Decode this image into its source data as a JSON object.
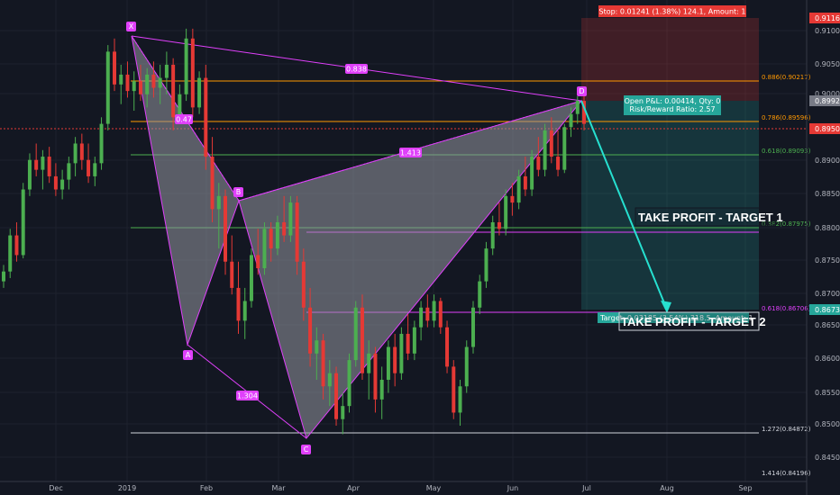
{
  "chart_data": {
    "type": "candlestick",
    "ylim": [
      0.8405,
      0.9125
    ],
    "x_ticks": [
      "Dec",
      "2019",
      "Feb",
      "Mar",
      "Apr",
      "May",
      "Jun",
      "Jul",
      "Aug",
      "Sep"
    ],
    "y_ticks": [
      "0.91000",
      "0.90500",
      "0.90000",
      "0.89000",
      "0.88500",
      "0.88000",
      "0.87500",
      "0.87000",
      "0.86500",
      "0.86000",
      "0.85500",
      "0.85000",
      "0.84500"
    ],
    "price_badges": [
      {
        "value": "0.91161",
        "y": 0.91161,
        "color": "#e53935"
      },
      {
        "value": "0.89920",
        "y": 0.8992,
        "color": "#787b86"
      },
      {
        "value": "0.89506",
        "y": 0.89506,
        "color": "#e53935"
      },
      {
        "value": "0.86735",
        "y": 0.86735,
        "color": "#26a69a"
      }
    ],
    "pattern_points": [
      {
        "label": "X",
        "x": "2018-12-31",
        "y": 0.9095
      },
      {
        "label": "A",
        "x": "2019-01-28",
        "y": 0.8622
      },
      {
        "label": "B",
        "x": "2019-02-15",
        "y": 0.884
      },
      {
        "label": "C",
        "x": "2019-03-12",
        "y": 0.8477
      },
      {
        "label": "D",
        "x": "2019-06-28",
        "y": 0.8992
      }
    ],
    "ratios": [
      "0.838",
      "0.47",
      "1.413",
      "1.304"
    ],
    "fib_levels": [
      {
        "label": "0.886(0.90217)",
        "y": 0.90217,
        "color": "#ff9800"
      },
      {
        "label": "0.786(0.89596)",
        "y": 0.89596,
        "color": "#ff9800"
      },
      {
        "label": "0.618(0.89093)",
        "y": 0.89093,
        "color": "#4caf50"
      },
      {
        "label": "0.382(0.87975)",
        "y": 0.87975,
        "color": "#4caf50"
      },
      {
        "label": "0.618(0.86706)",
        "y": 0.86706,
        "color": "#e040fb"
      },
      {
        "label": "1.272(0.84872)",
        "y": 0.84872,
        "color": "#ffffff"
      },
      {
        "label": "1.414(0.84196)",
        "y": 0.84196,
        "color": "#ffffff"
      }
    ],
    "position": {
      "entry": 0.8992,
      "stop": 0.91161,
      "target": 0.86735,
      "stop_label": "Stop: 0.01241 (1.38%) 124.1, Amount: 1",
      "pnl_line1": "Open P&L: 0.00414, Qty: 0",
      "pnl_line2": "Risk/Reward Ratio: 2.57",
      "target_tag": "Target: 0.03185 (3.54%) 318.5, Amount: 1"
    },
    "annotations": [
      "TAKE PROFIT - TARGET 1",
      "TAKE PROFIT - TARGET 2"
    ],
    "colors": {
      "up": "#26a69a",
      "bullish_candle": "#4caf50",
      "bearish_candle": "#e53935",
      "pattern_fill": "#9598a1",
      "pattern_line": "#e040fb",
      "arrow": "#26e0d0",
      "background": "#131722"
    },
    "candles": [
      {
        "o": 0.871,
        "h": 0.8735,
        "l": 0.87,
        "c": 0.8725
      },
      {
        "o": 0.8725,
        "h": 0.879,
        "l": 0.8715,
        "c": 0.878
      },
      {
        "o": 0.878,
        "h": 0.88,
        "l": 0.874,
        "c": 0.875
      },
      {
        "o": 0.875,
        "h": 0.886,
        "l": 0.8745,
        "c": 0.885
      },
      {
        "o": 0.885,
        "h": 0.8905,
        "l": 0.884,
        "c": 0.8895
      },
      {
        "o": 0.8895,
        "h": 0.892,
        "l": 0.887,
        "c": 0.888
      },
      {
        "o": 0.888,
        "h": 0.891,
        "l": 0.885,
        "c": 0.89
      },
      {
        "o": 0.89,
        "h": 0.8915,
        "l": 0.886,
        "c": 0.887
      },
      {
        "o": 0.887,
        "h": 0.889,
        "l": 0.884,
        "c": 0.885
      },
      {
        "o": 0.885,
        "h": 0.888,
        "l": 0.8835,
        "c": 0.8865
      },
      {
        "o": 0.8865,
        "h": 0.89,
        "l": 0.885,
        "c": 0.889
      },
      {
        "o": 0.889,
        "h": 0.893,
        "l": 0.887,
        "c": 0.892
      },
      {
        "o": 0.892,
        "h": 0.8935,
        "l": 0.888,
        "c": 0.8895
      },
      {
        "o": 0.8895,
        "h": 0.892,
        "l": 0.886,
        "c": 0.887
      },
      {
        "o": 0.887,
        "h": 0.89,
        "l": 0.8855,
        "c": 0.889
      },
      {
        "o": 0.889,
        "h": 0.896,
        "l": 0.888,
        "c": 0.895
      },
      {
        "o": 0.895,
        "h": 0.907,
        "l": 0.894,
        "c": 0.906
      },
      {
        "o": 0.906,
        "h": 0.908,
        "l": 0.9,
        "c": 0.901
      },
      {
        "o": 0.901,
        "h": 0.904,
        "l": 0.898,
        "c": 0.9025
      },
      {
        "o": 0.9025,
        "h": 0.9045,
        "l": 0.899,
        "c": 0.9
      },
      {
        "o": 0.9,
        "h": 0.903,
        "l": 0.897,
        "c": 0.9015
      },
      {
        "o": 0.9015,
        "h": 0.904,
        "l": 0.8985,
        "c": 0.8995
      },
      {
        "o": 0.8995,
        "h": 0.9035,
        "l": 0.8975,
        "c": 0.9025
      },
      {
        "o": 0.9025,
        "h": 0.9045,
        "l": 0.899,
        "c": 0.9005
      },
      {
        "o": 0.9005,
        "h": 0.904,
        "l": 0.898,
        "c": 0.902
      },
      {
        "o": 0.902,
        "h": 0.906,
        "l": 0.8995,
        "c": 0.904
      },
      {
        "o": 0.904,
        "h": 0.905,
        "l": 0.894,
        "c": 0.896
      },
      {
        "o": 0.896,
        "h": 0.901,
        "l": 0.895,
        "c": 0.8995
      },
      {
        "o": 0.8995,
        "h": 0.9095,
        "l": 0.8985,
        "c": 0.908
      },
      {
        "o": 0.908,
        "h": 0.9095,
        "l": 0.896,
        "c": 0.8975
      },
      {
        "o": 0.8975,
        "h": 0.903,
        "l": 0.8965,
        "c": 0.902
      },
      {
        "o": 0.902,
        "h": 0.904,
        "l": 0.888,
        "c": 0.89
      },
      {
        "o": 0.89,
        "h": 0.893,
        "l": 0.88,
        "c": 0.882
      },
      {
        "o": 0.882,
        "h": 0.886,
        "l": 0.876,
        "c": 0.884
      },
      {
        "o": 0.884,
        "h": 0.885,
        "l": 0.872,
        "c": 0.874
      },
      {
        "o": 0.874,
        "h": 0.878,
        "l": 0.869,
        "c": 0.87
      },
      {
        "o": 0.87,
        "h": 0.874,
        "l": 0.863,
        "c": 0.865
      },
      {
        "o": 0.865,
        "h": 0.87,
        "l": 0.8622,
        "c": 0.868
      },
      {
        "o": 0.868,
        "h": 0.876,
        "l": 0.867,
        "c": 0.875
      },
      {
        "o": 0.875,
        "h": 0.879,
        "l": 0.872,
        "c": 0.873
      },
      {
        "o": 0.873,
        "h": 0.88,
        "l": 0.872,
        "c": 0.879
      },
      {
        "o": 0.879,
        "h": 0.88,
        "l": 0.874,
        "c": 0.876
      },
      {
        "o": 0.876,
        "h": 0.881,
        "l": 0.875,
        "c": 0.88
      },
      {
        "o": 0.88,
        "h": 0.884,
        "l": 0.877,
        "c": 0.878
      },
      {
        "o": 0.878,
        "h": 0.884,
        "l": 0.877,
        "c": 0.883
      },
      {
        "o": 0.883,
        "h": 0.884,
        "l": 0.872,
        "c": 0.874
      },
      {
        "o": 0.874,
        "h": 0.876,
        "l": 0.865,
        "c": 0.867
      },
      {
        "o": 0.867,
        "h": 0.87,
        "l": 0.858,
        "c": 0.86
      },
      {
        "o": 0.86,
        "h": 0.864,
        "l": 0.856,
        "c": 0.862
      },
      {
        "o": 0.862,
        "h": 0.863,
        "l": 0.853,
        "c": 0.855
      },
      {
        "o": 0.855,
        "h": 0.859,
        "l": 0.852,
        "c": 0.857
      },
      {
        "o": 0.857,
        "h": 0.858,
        "l": 0.849,
        "c": 0.85
      },
      {
        "o": 0.85,
        "h": 0.854,
        "l": 0.8477,
        "c": 0.852
      },
      {
        "o": 0.852,
        "h": 0.86,
        "l": 0.851,
        "c": 0.859
      },
      {
        "o": 0.859,
        "h": 0.868,
        "l": 0.858,
        "c": 0.867
      },
      {
        "o": 0.867,
        "h": 0.869,
        "l": 0.856,
        "c": 0.857
      },
      {
        "o": 0.857,
        "h": 0.862,
        "l": 0.853,
        "c": 0.86
      },
      {
        "o": 0.86,
        "h": 0.861,
        "l": 0.851,
        "c": 0.853
      },
      {
        "o": 0.853,
        "h": 0.858,
        "l": 0.85,
        "c": 0.856
      },
      {
        "o": 0.856,
        "h": 0.862,
        "l": 0.854,
        "c": 0.861
      },
      {
        "o": 0.861,
        "h": 0.863,
        "l": 0.855,
        "c": 0.857
      },
      {
        "o": 0.857,
        "h": 0.864,
        "l": 0.856,
        "c": 0.863
      },
      {
        "o": 0.863,
        "h": 0.866,
        "l": 0.859,
        "c": 0.86
      },
      {
        "o": 0.86,
        "h": 0.865,
        "l": 0.859,
        "c": 0.864
      },
      {
        "o": 0.864,
        "h": 0.868,
        "l": 0.862,
        "c": 0.867
      },
      {
        "o": 0.867,
        "h": 0.869,
        "l": 0.864,
        "c": 0.865
      },
      {
        "o": 0.865,
        "h": 0.869,
        "l": 0.864,
        "c": 0.868
      },
      {
        "o": 0.868,
        "h": 0.8685,
        "l": 0.863,
        "c": 0.864
      },
      {
        "o": 0.864,
        "h": 0.865,
        "l": 0.857,
        "c": 0.858
      },
      {
        "o": 0.858,
        "h": 0.859,
        "l": 0.85,
        "c": 0.851
      },
      {
        "o": 0.851,
        "h": 0.856,
        "l": 0.849,
        "c": 0.855
      },
      {
        "o": 0.855,
        "h": 0.862,
        "l": 0.854,
        "c": 0.861
      },
      {
        "o": 0.861,
        "h": 0.868,
        "l": 0.86,
        "c": 0.867
      },
      {
        "o": 0.867,
        "h": 0.872,
        "l": 0.866,
        "c": 0.871
      },
      {
        "o": 0.871,
        "h": 0.877,
        "l": 0.87,
        "c": 0.876
      },
      {
        "o": 0.876,
        "h": 0.881,
        "l": 0.875,
        "c": 0.88
      },
      {
        "o": 0.88,
        "h": 0.883,
        "l": 0.878,
        "c": 0.879
      },
      {
        "o": 0.879,
        "h": 0.885,
        "l": 0.878,
        "c": 0.884
      },
      {
        "o": 0.884,
        "h": 0.886,
        "l": 0.881,
        "c": 0.883
      },
      {
        "o": 0.883,
        "h": 0.888,
        "l": 0.882,
        "c": 0.887
      },
      {
        "o": 0.887,
        "h": 0.89,
        "l": 0.884,
        "c": 0.885
      },
      {
        "o": 0.885,
        "h": 0.891,
        "l": 0.884,
        "c": 0.89
      },
      {
        "o": 0.89,
        "h": 0.893,
        "l": 0.887,
        "c": 0.888
      },
      {
        "o": 0.888,
        "h": 0.895,
        "l": 0.887,
        "c": 0.894
      },
      {
        "o": 0.894,
        "h": 0.896,
        "l": 0.889,
        "c": 0.89
      },
      {
        "o": 0.89,
        "h": 0.894,
        "l": 0.887,
        "c": 0.888
      },
      {
        "o": 0.888,
        "h": 0.895,
        "l": 0.8875,
        "c": 0.8945
      },
      {
        "o": 0.8945,
        "h": 0.8975,
        "l": 0.893,
        "c": 0.8965
      },
      {
        "o": 0.8965,
        "h": 0.8992,
        "l": 0.895,
        "c": 0.8985
      },
      {
        "o": 0.8985,
        "h": 0.8992,
        "l": 0.894,
        "c": 0.895
      }
    ]
  }
}
